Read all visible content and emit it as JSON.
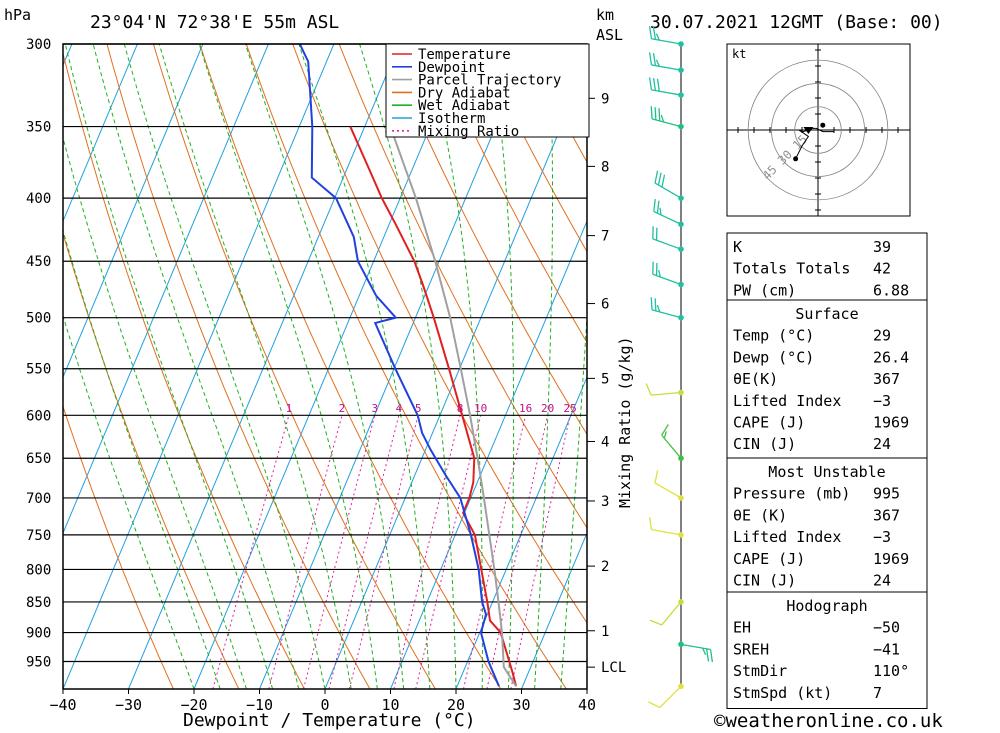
{
  "header": {
    "pressure_unit": "hPa",
    "location": "23°04'N  72°38'E  55m  ASL",
    "km_label": "km",
    "asl_label": "ASL",
    "datetime": "30.07.2021  12GMT  (Base: 00)"
  },
  "footer": {
    "credit": "©weatheronline.co.uk",
    "xaxis_label": "Dewpoint / Temperature (°C)"
  },
  "legend": [
    {
      "label": "Temperature",
      "color": "#e02020",
      "dash": ""
    },
    {
      "label": "Dewpoint",
      "color": "#2040e0",
      "dash": ""
    },
    {
      "label": "Parcel Trajectory",
      "color": "#a0a0a0",
      "dash": ""
    },
    {
      "label": "Dry Adiabat",
      "color": "#e07020",
      "dash": ""
    },
    {
      "label": "Wet Adiabat",
      "color": "#20b020",
      "dash": ""
    },
    {
      "label": "Isotherm",
      "color": "#20a0e0",
      "dash": ""
    },
    {
      "label": "Mixing Ratio",
      "color": "#e020a0",
      "dash": "2,3"
    }
  ],
  "chart_data": {
    "type": "line",
    "title": "Skew-T log-P sounding",
    "xlabel": "Dewpoint / Temperature (°C)",
    "ylabel": "hPa",
    "xlim": [
      -40,
      40
    ],
    "ylim": [
      1000,
      300
    ],
    "x_ticks": [
      "-40",
      "-30",
      "-20",
      "-10",
      "0",
      "10",
      "20",
      "30",
      "40"
    ],
    "pressure_ticks": [
      "300",
      "350",
      "400",
      "450",
      "500",
      "550",
      "600",
      "650",
      "700",
      "750",
      "800",
      "850",
      "900",
      "950"
    ],
    "km_ticks": [
      {
        "label": "1",
        "p": 897
      },
      {
        "label": "2",
        "p": 795
      },
      {
        "label": "3",
        "p": 704
      },
      {
        "label": "4",
        "p": 630
      },
      {
        "label": "5",
        "p": 560
      },
      {
        "label": "6",
        "p": 487
      },
      {
        "label": "7",
        "p": 429
      },
      {
        "label": "8",
        "p": 377
      },
      {
        "label": "9",
        "p": 332
      }
    ],
    "lcl": {
      "label": "LCL",
      "p": 960
    },
    "secondary_axis_label": "Mixing Ratio (g/kg)",
    "mixing_ratio_labels": [
      "1",
      "2",
      "3",
      "4",
      "5",
      "8",
      "10",
      "16",
      "20",
      "25"
    ],
    "mixing_ratio_values": [
      1,
      2,
      3,
      4,
      5,
      8,
      10,
      16,
      20,
      25
    ],
    "series": [
      {
        "name": "Temperature",
        "color": "#e02020",
        "points": [
          [
            995,
            29
          ],
          [
            970,
            27.6
          ],
          [
            925,
            24.8
          ],
          [
            900,
            23.2
          ],
          [
            880,
            20.8
          ],
          [
            850,
            19.2
          ],
          [
            800,
            16.2
          ],
          [
            750,
            13
          ],
          [
            720,
            9.8
          ],
          [
            700,
            9.8
          ],
          [
            680,
            9.4
          ],
          [
            650,
            8
          ],
          [
            600,
            3.4
          ],
          [
            550,
            -1.6
          ],
          [
            500,
            -7.2
          ],
          [
            470,
            -11
          ],
          [
            450,
            -13.8
          ],
          [
            420,
            -19
          ],
          [
            400,
            -22.8
          ],
          [
            380,
            -26.4
          ],
          [
            350,
            -32.2
          ]
        ]
      },
      {
        "name": "Dewpoint",
        "color": "#2040e0",
        "points": [
          [
            995,
            26.4
          ],
          [
            950,
            23.2
          ],
          [
            900,
            20.2
          ],
          [
            870,
            19.8
          ],
          [
            850,
            18.4
          ],
          [
            800,
            15.8
          ],
          [
            750,
            12.4
          ],
          [
            700,
            8.4
          ],
          [
            670,
            4.6
          ],
          [
            640,
            0.8
          ],
          [
            620,
            -1.6
          ],
          [
            600,
            -3.4
          ],
          [
            550,
            -9.8
          ],
          [
            505,
            -15.8
          ],
          [
            500,
            -13
          ],
          [
            480,
            -17.4
          ],
          [
            450,
            -22.4
          ],
          [
            430,
            -24.6
          ],
          [
            400,
            -29.8
          ],
          [
            385,
            -34.8
          ],
          [
            350,
            -38
          ],
          [
            310,
            -42.8
          ],
          [
            300,
            -45.2
          ]
        ]
      },
      {
        "name": "Parcel Trajectory",
        "color": "#a0a0a0",
        "points": [
          [
            995,
            29
          ],
          [
            960,
            25.9
          ],
          [
            900,
            23.4
          ],
          [
            850,
            20.9
          ],
          [
            800,
            18.2
          ],
          [
            750,
            15.2
          ],
          [
            700,
            12
          ],
          [
            650,
            8.5
          ],
          [
            600,
            4.6
          ],
          [
            550,
            0.2
          ],
          [
            500,
            -4.7
          ],
          [
            450,
            -10.6
          ],
          [
            400,
            -17.6
          ],
          [
            350,
            -26.1
          ]
        ]
      }
    ]
  },
  "wind_barbs": [
    {
      "p": 995,
      "speed_kt": 10,
      "dir_deg": 225,
      "color": "#e0e040"
    },
    {
      "p": 920,
      "speed_kt": 25,
      "dir_deg": 100,
      "color": "#20c080"
    },
    {
      "p": 850,
      "speed_kt": 10,
      "dir_deg": 220,
      "color": "#c0e040"
    },
    {
      "p": 750,
      "speed_kt": 10,
      "dir_deg": 280,
      "color": "#e0e040"
    },
    {
      "p": 700,
      "speed_kt": 10,
      "dir_deg": 300,
      "color": "#e0e040"
    },
    {
      "p": 650,
      "speed_kt": 15,
      "dir_deg": 320,
      "color": "#40c040"
    },
    {
      "p": 575,
      "speed_kt": 10,
      "dir_deg": 265,
      "color": "#c0e040"
    },
    {
      "p": 500,
      "speed_kt": 25,
      "dir_deg": 285,
      "color": "#20c0a0"
    },
    {
      "p": 470,
      "speed_kt": 25,
      "dir_deg": 290,
      "color": "#20c0a0"
    },
    {
      "p": 440,
      "speed_kt": 20,
      "dir_deg": 290,
      "color": "#20c0a0"
    },
    {
      "p": 420,
      "speed_kt": 25,
      "dir_deg": 295,
      "color": "#20c0a0"
    },
    {
      "p": 400,
      "speed_kt": 30,
      "dir_deg": 300,
      "color": "#20c0a0"
    },
    {
      "p": 350,
      "speed_kt": 35,
      "dir_deg": 285,
      "color": "#20c080"
    },
    {
      "p": 330,
      "speed_kt": 30,
      "dir_deg": 280,
      "color": "#20c0a0"
    },
    {
      "p": 315,
      "speed_kt": 25,
      "dir_deg": 280,
      "color": "#20c0a0"
    },
    {
      "p": 300,
      "speed_kt": 25,
      "dir_deg": 280,
      "color": "#20c0a0"
    }
  ],
  "hodograph": {
    "unit_label": "kt",
    "rings": [
      15,
      30,
      45
    ],
    "ring_labels": [
      "15",
      "30",
      "45"
    ],
    "trace_kt": [
      [
        -14,
        -18
      ],
      [
        -10,
        -10
      ],
      [
        -6,
        -4
      ],
      [
        -12,
        0
      ],
      [
        -9,
        -1
      ],
      [
        -4,
        1
      ],
      [
        -1,
        1
      ],
      [
        3,
        -1
      ],
      [
        10,
        -1
      ]
    ],
    "storm_motion_kt": [
      -5,
      -3
    ]
  },
  "indices": {
    "rows": [
      {
        "label": "K",
        "value": "39"
      },
      {
        "label": "Totals Totals",
        "value": "42"
      },
      {
        "label": "PW (cm)",
        "value": "6.88"
      }
    ]
  },
  "surface": {
    "title": "Surface",
    "rows": [
      {
        "label": "Temp (°C)",
        "value": "29"
      },
      {
        "label": "Dewp (°C)",
        "value": "26.4"
      },
      {
        "label": "θE(K)",
        "value": "367"
      },
      {
        "label": "Lifted Index",
        "value": "−3"
      },
      {
        "label": "CAPE (J)",
        "value": "1969"
      },
      {
        "label": "CIN (J)",
        "value": "24"
      }
    ]
  },
  "most_unstable": {
    "title": "Most Unstable",
    "rows": [
      {
        "label": "Pressure (mb)",
        "value": "995"
      },
      {
        "label": "θE (K)",
        "value": "367"
      },
      {
        "label": "Lifted Index",
        "value": "−3"
      },
      {
        "label": "CAPE (J)",
        "value": "1969"
      },
      {
        "label": "CIN (J)",
        "value": "24"
      }
    ]
  },
  "hodograph_table": {
    "title": "Hodograph",
    "rows": [
      {
        "label": "EH",
        "value": "−50"
      },
      {
        "label": "SREH",
        "value": "−41"
      },
      {
        "label": "StmDir",
        "value": "110°"
      },
      {
        "label": "StmSpd (kt)",
        "value": "7"
      }
    ]
  }
}
